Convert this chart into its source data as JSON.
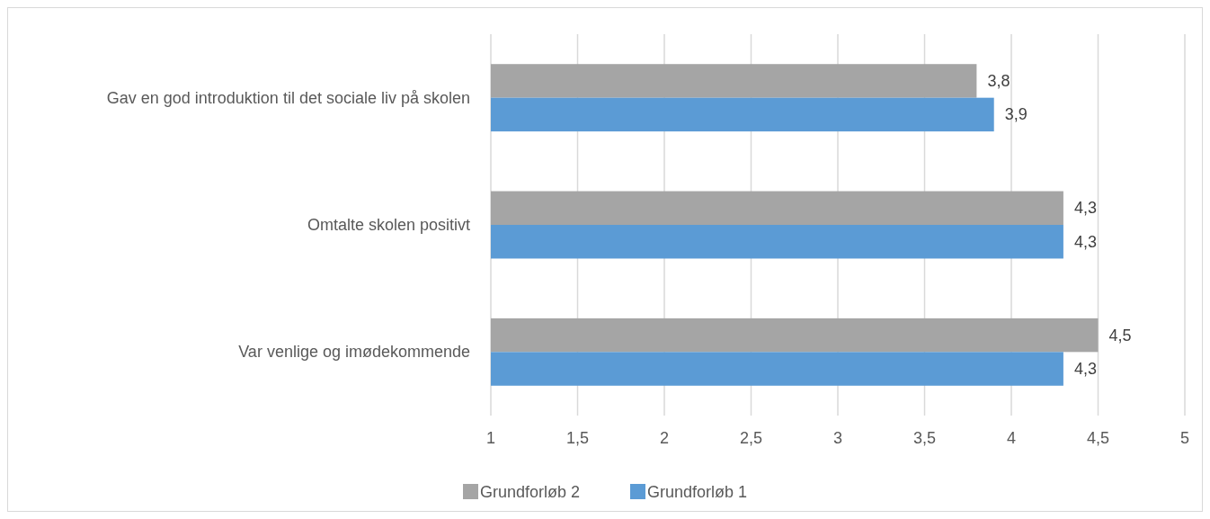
{
  "chart_data": {
    "type": "bar",
    "orientation": "horizontal",
    "categories": [
      "Gav en god introduktion til det sociale liv på skolen",
      "Omtalte skolen positivt",
      "Var venlige og imødekommende"
    ],
    "series": [
      {
        "name": "Grundforløb 2",
        "color": "#a5a5a5",
        "values": [
          3.8,
          4.3,
          4.5
        ],
        "value_labels": [
          "3,8",
          "4,3",
          "4,5"
        ]
      },
      {
        "name": "Grundforløb 1",
        "color": "#5b9bd5",
        "values": [
          3.9,
          4.3,
          4.3
        ],
        "value_labels": [
          "3,9",
          "4,3",
          "4,3"
        ]
      }
    ],
    "xlim": [
      1,
      5
    ],
    "xticks": [
      1,
      {
        "value": 1.5,
        "label": "1,5"
      },
      2,
      {
        "value": 2.5,
        "label": "2,5"
      },
      3,
      {
        "value": 3.5,
        "label": "3,5"
      },
      4,
      {
        "value": 4.5,
        "label": "4,5"
      },
      5
    ],
    "grid": "x",
    "legend": "bottom"
  }
}
